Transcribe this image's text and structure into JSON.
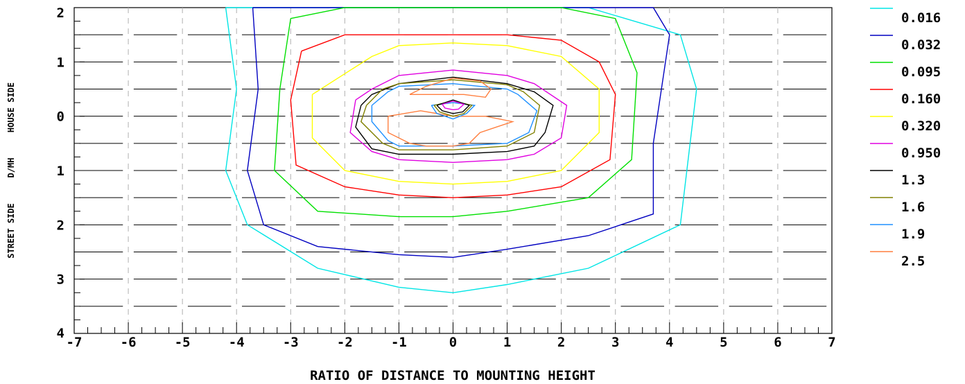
{
  "chart_data": {
    "type": "contour",
    "xlabel": "RATIO OF DISTANCE TO MOUNTING HEIGHT",
    "ylabel_left": "STREET SIDE",
    "ylabel_mid": "D/MH",
    "ylabel_right": "HOUSE SIDE",
    "xlim": [
      -7,
      7
    ],
    "ylim": [
      -4,
      2
    ],
    "x_ticks": [
      -7,
      -6,
      -5,
      -4,
      -3,
      -2,
      -1,
      0,
      1,
      2,
      3,
      4,
      5,
      6,
      7
    ],
    "x_tick_labels": [
      "-7",
      "-6",
      "-5",
      "-4",
      "-3",
      "-2",
      "-1",
      "0",
      "1",
      "2",
      "3",
      "4",
      "5",
      "6",
      "7"
    ],
    "y_ticks": [
      2,
      1,
      0,
      -1,
      -2,
      -3,
      -4
    ],
    "y_tick_labels": [
      "2",
      "1",
      "0",
      "1",
      "2",
      "3",
      "4"
    ],
    "legend_position": "right",
    "levels": [
      {
        "value": "0.016",
        "color": "#00e5e5",
        "x": [
          -4.2,
          -3.0,
          -1.0,
          0.0,
          1.0,
          2.5,
          4.2,
          4.5,
          4.2,
          2.5,
          1.0,
          0.0,
          -1.0,
          -2.5,
          -3.8,
          -4.2,
          -4.0,
          -4.2
        ],
        "y": [
          2.0,
          2.0,
          2.0,
          2.0,
          2.0,
          2.0,
          1.5,
          0.5,
          -2.0,
          -2.8,
          -3.1,
          -3.25,
          -3.15,
          -2.8,
          -2.0,
          -1.0,
          0.5,
          2.0
        ]
      },
      {
        "value": "0.032",
        "color": "#0000c0",
        "x": [
          -3.7,
          -2.5,
          -1.0,
          0.0,
          1.0,
          2.5,
          3.7,
          4.0,
          3.7,
          3.7,
          2.5,
          1.0,
          0.0,
          -1.0,
          -2.5,
          -3.5,
          -3.8,
          -3.6,
          -3.7
        ],
        "y": [
          2.0,
          2.0,
          2.0,
          2.0,
          2.0,
          2.0,
          2.0,
          1.5,
          -0.5,
          -1.8,
          -2.2,
          -2.45,
          -2.6,
          -2.55,
          -2.4,
          -2.0,
          -1.0,
          0.5,
          2.0
        ]
      },
      {
        "value": "0.095",
        "color": "#00e000",
        "x": [
          -3.0,
          -2.0,
          -1.0,
          0.0,
          1.0,
          2.0,
          3.0,
          3.4,
          3.3,
          2.5,
          1.0,
          0.0,
          -1.0,
          -2.5,
          -3.3,
          -3.2,
          -3.0
        ],
        "y": [
          1.8,
          2.0,
          2.0,
          2.0,
          2.0,
          2.0,
          1.8,
          0.8,
          -0.8,
          -1.5,
          -1.75,
          -1.85,
          -1.85,
          -1.75,
          -1.0,
          0.5,
          1.8
        ]
      },
      {
        "value": "0.160",
        "color": "#ff0000",
        "x": [
          -2.8,
          -2.0,
          -1.0,
          0.0,
          1.0,
          2.0,
          2.7,
          3.0,
          2.9,
          2.0,
          1.0,
          0.0,
          -1.0,
          -2.0,
          -2.9,
          -3.0,
          -2.8
        ],
        "y": [
          1.2,
          1.5,
          1.5,
          1.5,
          1.5,
          1.4,
          1.0,
          0.4,
          -0.8,
          -1.3,
          -1.45,
          -1.5,
          -1.45,
          -1.3,
          -0.9,
          0.3,
          1.2
        ]
      },
      {
        "value": "0.320",
        "color": "#ffff00",
        "x": [
          -2.6,
          -1.5,
          -1.0,
          0.0,
          1.0,
          2.0,
          2.7,
          2.7,
          2.0,
          1.0,
          0.0,
          -1.0,
          -2.0,
          -2.6,
          -2.6
        ],
        "y": [
          0.4,
          1.1,
          1.3,
          1.35,
          1.3,
          1.1,
          0.5,
          -0.3,
          -1.0,
          -1.2,
          -1.25,
          -1.2,
          -1.0,
          -0.4,
          0.4
        ]
      },
      {
        "value": "0.950",
        "color": "#e000e0",
        "x": [
          -1.8,
          -1.5,
          -1.0,
          0.0,
          1.0,
          1.5,
          2.1,
          2.0,
          1.5,
          1.0,
          0.0,
          -1.0,
          -1.5,
          -1.9,
          -1.8
        ],
        "y": [
          0.3,
          0.5,
          0.75,
          0.85,
          0.75,
          0.6,
          0.2,
          -0.4,
          -0.7,
          -0.8,
          -0.85,
          -0.8,
          -0.65,
          -0.3,
          0.3
        ]
      },
      {
        "value": "1.3",
        "color": "#000000",
        "x": [
          -1.7,
          -1.5,
          -1.0,
          0.0,
          1.0,
          1.5,
          1.85,
          1.7,
          1.5,
          1.0,
          0.0,
          -1.0,
          -1.5,
          -1.8,
          -1.7
        ],
        "y": [
          0.2,
          0.4,
          0.6,
          0.72,
          0.6,
          0.45,
          0.2,
          -0.3,
          -0.55,
          -0.65,
          -0.7,
          -0.7,
          -0.6,
          -0.2,
          0.2
        ]
      },
      {
        "value": "1.6",
        "color": "#808000",
        "x": [
          -1.6,
          -1.3,
          -1.0,
          0.0,
          1.0,
          1.3,
          1.6,
          1.5,
          1.0,
          0.0,
          -1.0,
          -1.3,
          -1.7,
          -1.6
        ],
        "y": [
          0.2,
          0.5,
          0.6,
          0.67,
          0.58,
          0.45,
          0.2,
          -0.3,
          -0.55,
          -0.62,
          -0.62,
          -0.5,
          -0.1,
          0.2
        ]
      },
      {
        "value": "1.9",
        "color": "#1e90ff",
        "x": [
          -1.5,
          -1.2,
          -1.0,
          0.0,
          1.0,
          1.2,
          1.55,
          1.4,
          1.0,
          0.0,
          -1.0,
          -1.2,
          -1.5,
          -1.5
        ],
        "y": [
          0.2,
          0.45,
          0.55,
          0.6,
          0.5,
          0.4,
          0.1,
          -0.3,
          -0.5,
          -0.55,
          -0.55,
          -0.45,
          -0.1,
          0.2
        ]
      },
      {
        "value": "2.5",
        "color": "#ff7f3f",
        "x": [
          -0.8,
          -0.5,
          0.0,
          0.5,
          0.7,
          0.6,
          0.2,
          -0.2,
          -0.8
        ],
        "y": [
          0.4,
          0.55,
          0.7,
          0.65,
          0.5,
          0.35,
          0.4,
          0.4,
          0.4
        ]
      },
      {
        "value": "2.5",
        "color": "#ff7f3f",
        "x": [
          -1.2,
          -0.6,
          0.0,
          0.6,
          1.1,
          0.8,
          0.5,
          0.3,
          0.0,
          -0.5,
          -0.8,
          -1.2,
          -1.2
        ],
        "y": [
          0.0,
          0.1,
          0.0,
          0.0,
          -0.1,
          -0.2,
          -0.3,
          -0.5,
          -0.55,
          -0.55,
          -0.5,
          -0.3,
          0.0
        ]
      },
      {
        "value": "1.9",
        "color": "#1e90ff",
        "x": [
          -0.4,
          0.0,
          0.4,
          0.25,
          0.0,
          -0.3,
          -0.4
        ],
        "y": [
          0.2,
          0.25,
          0.2,
          0.05,
          -0.05,
          0.05,
          0.2
        ]
      },
      {
        "value": "1.6",
        "color": "#808000",
        "x": [
          -0.35,
          0.0,
          0.35,
          0.2,
          0.0,
          -0.25,
          -0.35
        ],
        "y": [
          0.2,
          0.28,
          0.2,
          0.05,
          0.0,
          0.08,
          0.2
        ]
      },
      {
        "value": "1.3",
        "color": "#000000",
        "x": [
          -0.3,
          0.0,
          0.3,
          0.18,
          0.0,
          -0.2,
          -0.3
        ],
        "y": [
          0.2,
          0.3,
          0.2,
          0.08,
          0.05,
          0.1,
          0.2
        ]
      },
      {
        "value": "0.950",
        "color": "#e000e0",
        "x": [
          -0.2,
          0.0,
          0.2,
          0.1,
          0.0,
          -0.15,
          -0.2
        ],
        "y": [
          0.22,
          0.28,
          0.22,
          0.13,
          0.12,
          0.15,
          0.22
        ]
      }
    ],
    "legend": [
      {
        "label": "0.016",
        "color": "#00e5e5"
      },
      {
        "label": "0.032",
        "color": "#0000c0"
      },
      {
        "label": "0.095",
        "color": "#00e000"
      },
      {
        "label": "0.160",
        "color": "#ff0000"
      },
      {
        "label": "0.320",
        "color": "#ffff00"
      },
      {
        "label": "0.950",
        "color": "#e000e0"
      },
      {
        "label": "1.3",
        "color": "#000000"
      },
      {
        "label": "1.6",
        "color": "#808000"
      },
      {
        "label": "1.9",
        "color": "#1e90ff"
      },
      {
        "label": "2.5",
        "color": "#ff7f3f"
      }
    ]
  }
}
